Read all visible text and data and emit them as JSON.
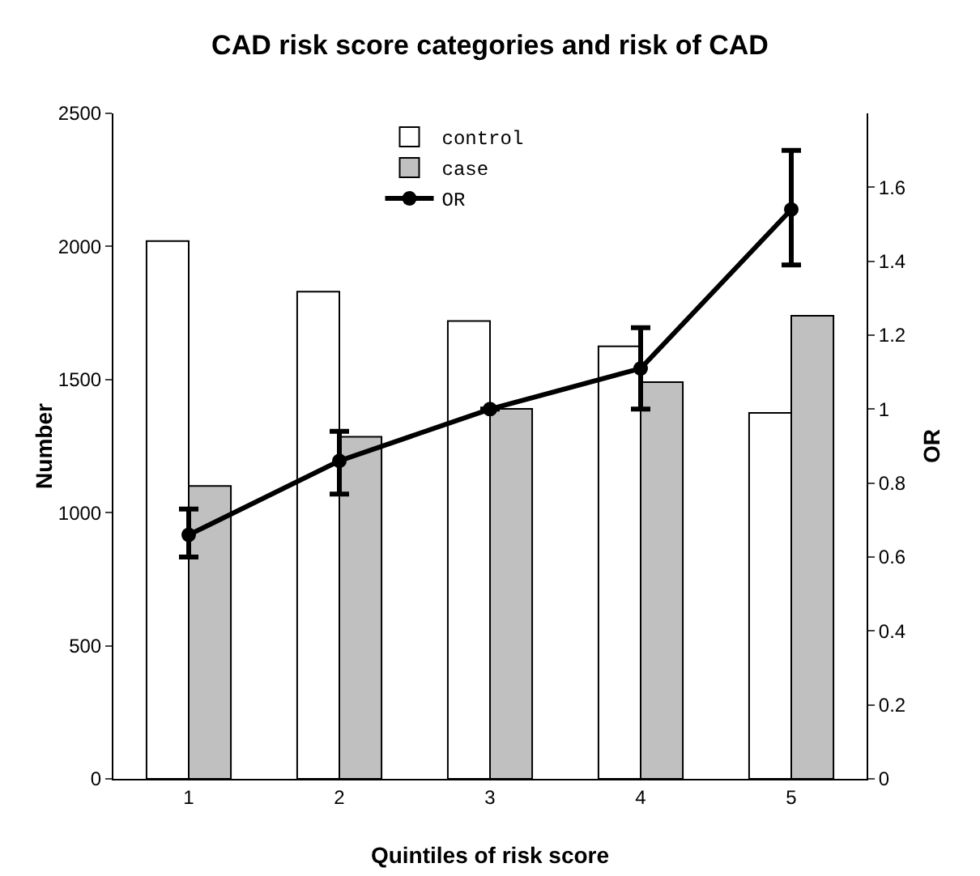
{
  "chart_data": {
    "type": "bar",
    "title": "CAD risk score categories and risk of CAD",
    "xlabel": "Quintiles of risk score",
    "ylabel": "Number",
    "y2label": "OR",
    "categories": [
      "1",
      "2",
      "3",
      "4",
      "5"
    ],
    "series": [
      {
        "name": "control",
        "color": "#ffffff",
        "values": [
          2020,
          1830,
          1720,
          1625,
          1375
        ]
      },
      {
        "name": "case",
        "color": "#c0c0c0",
        "values": [
          1100,
          1285,
          1390,
          1490,
          1740
        ]
      },
      {
        "name": "OR",
        "type": "line",
        "axis": "y2",
        "color": "#000000",
        "marker": "circle",
        "values": [
          0.66,
          0.86,
          1.0,
          1.11,
          1.54
        ],
        "errors": [
          [
            0.6,
            0.73
          ],
          [
            0.77,
            0.94
          ],
          null,
          [
            1.0,
            1.22
          ],
          [
            1.39,
            1.7
          ]
        ]
      }
    ],
    "ylim": [
      0,
      2500
    ],
    "yticks": [
      0,
      500,
      1000,
      1500,
      2000,
      2500
    ],
    "y2lim": [
      0,
      1.8
    ],
    "y2ticks": [
      0,
      0.2,
      0.4,
      0.6,
      0.8,
      1,
      1.2,
      1.4,
      1.6
    ],
    "grid": false,
    "legend": "top"
  }
}
